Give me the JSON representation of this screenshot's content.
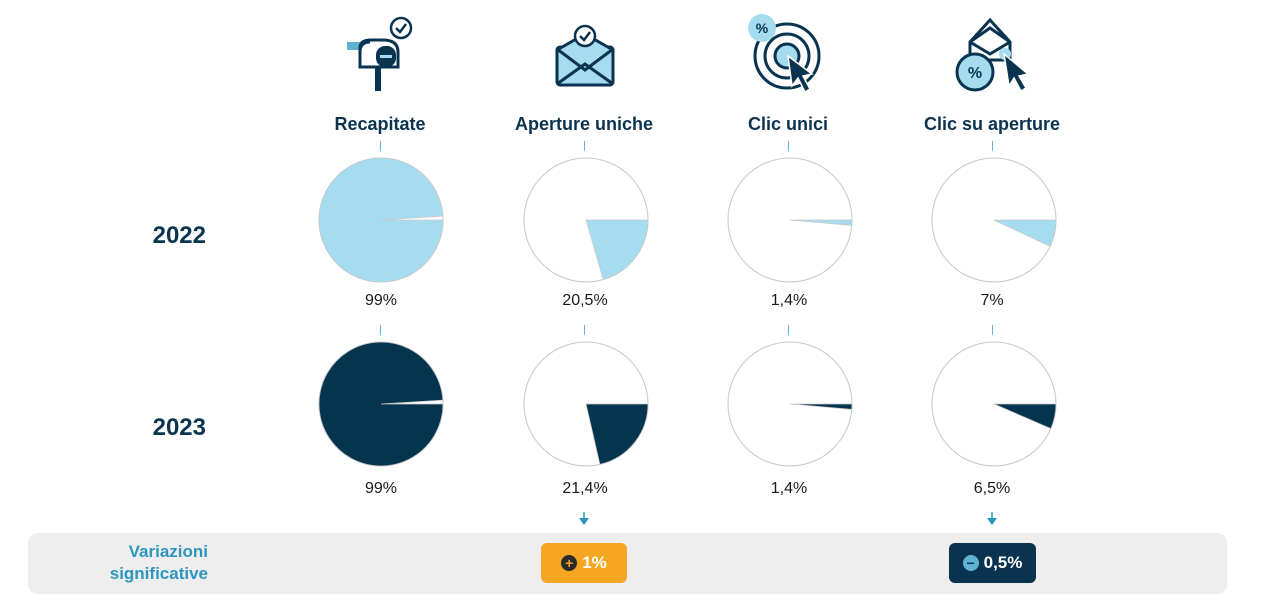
{
  "chart_data": {
    "type": "pie",
    "metrics": [
      {
        "label": "Recapitate",
        "icon": "mailbox-icon"
      },
      {
        "label": "Aperture uniche",
        "icon": "open-envelope-icon"
      },
      {
        "label": "Clic unici",
        "icon": "target-click-icon"
      },
      {
        "label": "Clic su aperture",
        "icon": "envelope-click-icon"
      }
    ],
    "series": [
      {
        "year": "2022",
        "color": "#a5dcf0",
        "values": [
          99,
          20.5,
          1.4,
          7
        ],
        "labels": [
          "99%",
          "20,5%",
          "1,4%",
          "7%"
        ]
      },
      {
        "year": "2023",
        "color": "#05344f",
        "values": [
          99,
          21.4,
          1.4,
          6.5
        ],
        "labels": [
          "99%",
          "21,4%",
          "1,4%",
          "6,5%"
        ]
      }
    ]
  },
  "variations": {
    "title_line1": "Variazioni",
    "title_line2": "significative",
    "items": [
      {
        "metric_index": 1,
        "sign": "+",
        "value": "1%",
        "color": "#f5a623"
      },
      {
        "metric_index": 3,
        "sign": "−",
        "value": "0,5%",
        "color": "#0a3350"
      }
    ]
  },
  "colors": {
    "navy": "#0a3350",
    "light_blue": "#a5dcf0",
    "accent_blue": "#5fb3d0",
    "orange": "#f5a623",
    "bar_bg": "#eeeeee"
  }
}
